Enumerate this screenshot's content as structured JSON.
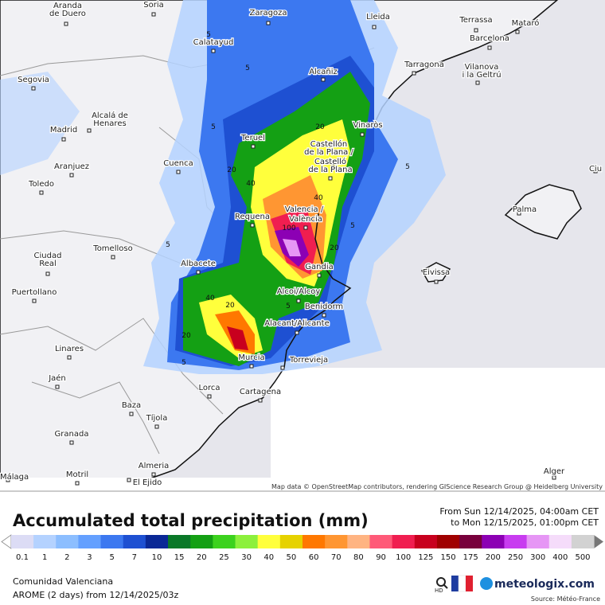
{
  "map": {
    "cities": [
      [
        "Aranda",
        "de Duero"
      ],
      [
        "Soria"
      ],
      [
        "Zaragoza"
      ],
      [
        "Lleida"
      ],
      [
        "Terrassa"
      ],
      [
        "Mataró"
      ],
      [
        "Calatayud"
      ],
      [
        "Barcelona"
      ],
      [
        "Tarragona"
      ],
      [
        "Vilanova",
        "i la Geltrú"
      ],
      [
        "Alcañiz"
      ],
      [
        "Segovia"
      ],
      [
        "Alcalá de",
        "Henares"
      ],
      [
        "Madrid"
      ],
      [
        "Vinaròs"
      ],
      [
        "Teruel"
      ],
      [
        "Castellón",
        "de la Plana /"
      ],
      [
        "Castelló",
        "de la Plana"
      ],
      [
        "Cuenca"
      ],
      [
        "Aranjuez"
      ],
      [
        "Toledo"
      ],
      [
        "Palma"
      ],
      [
        "Valencia /"
      ],
      [
        "València"
      ],
      [
        "Requena"
      ],
      [
        "Ciudad",
        "Real"
      ],
      [
        "Tomelloso"
      ],
      [
        "Albacete"
      ],
      [
        "Gandia"
      ],
      [
        "Eivissa"
      ],
      [
        "Puertollano"
      ],
      [
        "Alcoi/Alcoy"
      ],
      [
        "Benidorm"
      ],
      [
        "Alacant/Alicante"
      ],
      [
        "Linares"
      ],
      [
        "Torrevieja"
      ],
      [
        "Murcia"
      ],
      [
        "Jaén"
      ],
      [
        "Lorca"
      ],
      [
        "Cartagena"
      ],
      [
        "Baza"
      ],
      [
        "Tíjola"
      ],
      [
        "Granada"
      ],
      [
        "Almeria"
      ],
      [
        "Alger"
      ],
      [
        "Motril"
      ],
      [
        "Málaga"
      ],
      [
        "El Ejido"
      ],
      [
        "Ciu"
      ]
    ],
    "contour_labels": [
      "5",
      "5",
      "5",
      "5",
      "20",
      "20",
      "40",
      "40",
      "100",
      "20",
      "40",
      "20",
      "20",
      "5",
      "5",
      "5",
      "5"
    ],
    "attribution": "Map data © OpenStreetMap contributors, rendering GIScience Research Group @ Heidelberg University"
  },
  "legend": {
    "title": "Accumulated total precipitation (mm)",
    "period": [
      "From Sun 12/14/2025, 04:00am CET",
      "to Mon 12/15/2025, 01:00pm CET"
    ],
    "levels": [
      0.1,
      1,
      2,
      3,
      5,
      7,
      10,
      15,
      20,
      25,
      30,
      40,
      50,
      60,
      70,
      80,
      90,
      100,
      125,
      150,
      175,
      200,
      250,
      300,
      400,
      500
    ],
    "colors": [
      "#dcdcf5",
      "#b4d2ff",
      "#8cbeff",
      "#64a0ff",
      "#3c78f0",
      "#1e50d2",
      "#0a2896",
      "#0a7828",
      "#14a014",
      "#3cd21e",
      "#8cf03c",
      "#ffff3c",
      "#e6d200",
      "#ff7800",
      "#ff9632",
      "#ffb482",
      "#ff5a78",
      "#f01e50",
      "#c8001e",
      "#a00000",
      "#78003c",
      "#8c00b4",
      "#c83cf0",
      "#e696f5",
      "#f5dcfa",
      "#d2d2d2"
    ]
  },
  "footer": {
    "region": "Comunidad Valenciana",
    "model": "AROME (2 days) from 12/14/2025/03z",
    "hd": "HD",
    "brand": "meteologix.com",
    "source": "Source: Météo-France"
  }
}
